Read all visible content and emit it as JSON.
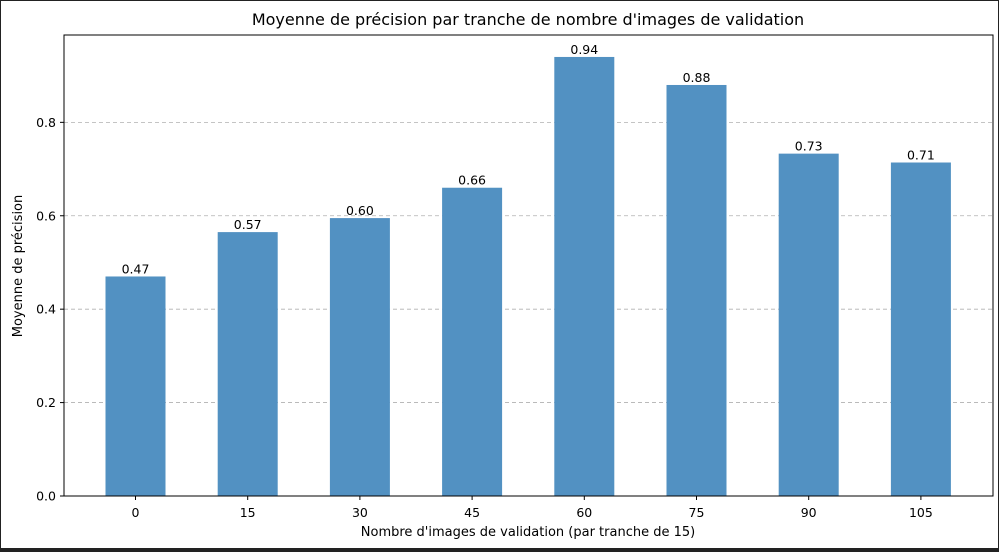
{
  "chart_data": {
    "type": "bar",
    "title": "Moyenne de précision par tranche de nombre d'images de validation",
    "xlabel": "Nombre d'images de validation (par tranche de 15)",
    "ylabel": "Moyenne de précision",
    "categories": [
      "0",
      "15",
      "30",
      "45",
      "60",
      "75",
      "90",
      "105"
    ],
    "values": [
      0.47,
      0.565,
      0.595,
      0.66,
      0.94,
      0.88,
      0.733,
      0.714
    ],
    "value_labels": [
      "0.47",
      "0.57",
      "0.60",
      "0.66",
      "0.94",
      "0.88",
      "0.73",
      "0.71"
    ],
    "yticks": [
      0.0,
      0.2,
      0.4,
      0.6,
      0.8
    ],
    "ytick_labels": [
      "0.0",
      "0.2",
      "0.4",
      "0.6",
      "0.8"
    ],
    "ylim": [
      0,
      0.987
    ],
    "grid": "y-dashed",
    "bar_color": "#5291c2"
  }
}
